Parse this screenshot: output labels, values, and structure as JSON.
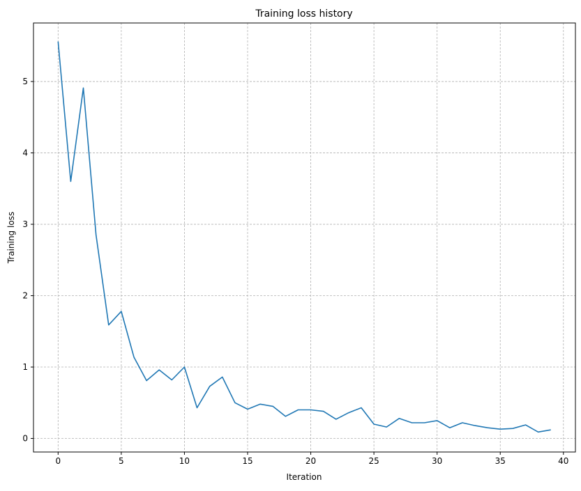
{
  "chart_data": {
    "type": "line",
    "title": "Training loss history",
    "xlabel": "Iteration",
    "ylabel": "Training loss",
    "xlim": [
      -1.95,
      40.95
    ],
    "ylim": [
      -0.19,
      5.82
    ],
    "grid": true,
    "xticks": [
      0,
      5,
      10,
      15,
      20,
      25,
      30,
      35,
      40
    ],
    "yticks": [
      0,
      1,
      2,
      3,
      4,
      5
    ],
    "series": [
      {
        "color": "#1f77b4",
        "x": [
          0,
          1,
          2,
          3,
          4,
          5,
          6,
          7,
          8,
          9,
          10,
          11,
          12,
          13,
          14,
          15,
          16,
          17,
          18,
          19,
          20,
          21,
          22,
          23,
          24,
          25,
          26,
          27,
          28,
          29,
          30,
          31,
          32,
          33,
          34,
          35,
          36,
          37,
          38,
          39
        ],
        "y": [
          5.56,
          3.6,
          4.91,
          2.85,
          1.59,
          1.78,
          1.14,
          0.81,
          0.96,
          0.82,
          1.0,
          0.43,
          0.73,
          0.86,
          0.5,
          0.41,
          0.48,
          0.45,
          0.31,
          0.4,
          0.4,
          0.38,
          0.27,
          0.36,
          0.43,
          0.2,
          0.16,
          0.28,
          0.22,
          0.22,
          0.25,
          0.15,
          0.22,
          0.18,
          0.15,
          0.13,
          0.14,
          0.19,
          0.09,
          0.12
        ]
      }
    ]
  }
}
